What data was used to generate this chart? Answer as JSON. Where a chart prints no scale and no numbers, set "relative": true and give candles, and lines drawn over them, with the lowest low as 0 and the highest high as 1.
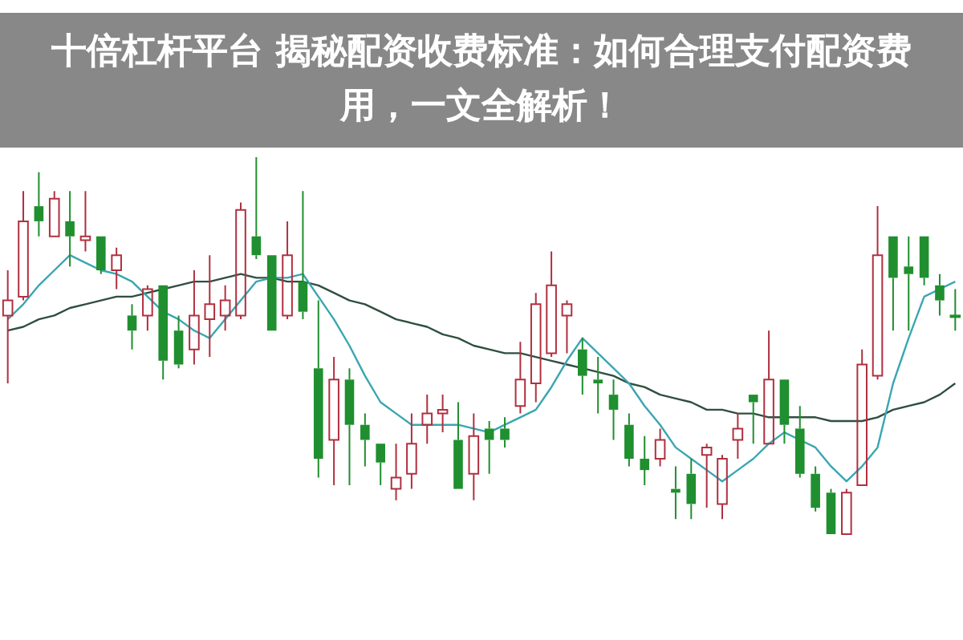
{
  "chart_data": {
    "type": "candlestick",
    "relative": true,
    "title": "十倍杠杆平台 揭秘配资收费标准：如何合理支付配资费用，一文全解析！",
    "categories": [
      null,
      null,
      null,
      null,
      null,
      null,
      null,
      null,
      null,
      null,
      null,
      null,
      null,
      null,
      null,
      null,
      null,
      null,
      null,
      null,
      null,
      null,
      null,
      null,
      null,
      null,
      null,
      null,
      null,
      null,
      null,
      null,
      null,
      null,
      null,
      null,
      null,
      null,
      null,
      null,
      null,
      null,
      null,
      null,
      null,
      null,
      null,
      null,
      null,
      null,
      null,
      null,
      null,
      null,
      null,
      null,
      null,
      null,
      null,
      null,
      null,
      null
    ],
    "ohlc": [
      [
        0.58,
        0.7,
        0.4,
        0.62
      ],
      [
        0.63,
        0.91,
        0.62,
        0.83
      ],
      [
        0.87,
        0.96,
        0.79,
        0.83
      ],
      [
        0.79,
        0.91,
        0.79,
        0.89
      ],
      [
        0.83,
        0.91,
        0.71,
        0.79
      ],
      [
        0.78,
        0.91,
        0.75,
        0.79
      ],
      [
        0.79,
        0.79,
        0.69,
        0.7
      ],
      [
        0.7,
        0.76,
        0.65,
        0.74
      ],
      [
        0.58,
        0.61,
        0.49,
        0.54
      ],
      [
        0.58,
        0.66,
        0.54,
        0.65
      ],
      [
        0.66,
        0.66,
        0.41,
        0.46
      ],
      [
        0.54,
        0.58,
        0.44,
        0.45
      ],
      [
        0.49,
        0.7,
        0.45,
        0.58
      ],
      [
        0.57,
        0.74,
        0.47,
        0.61
      ],
      [
        0.58,
        0.66,
        0.54,
        0.62
      ],
      [
        0.58,
        0.88,
        0.57,
        0.86
      ],
      [
        0.79,
        1.0,
        0.73,
        0.74
      ],
      [
        0.74,
        0.74,
        0.54,
        0.54
      ],
      [
        0.58,
        0.83,
        0.57,
        0.74
      ],
      [
        0.67,
        0.91,
        0.57,
        0.59
      ],
      [
        0.44,
        0.62,
        0.15,
        0.2
      ],
      [
        0.25,
        0.47,
        0.13,
        0.41
      ],
      [
        0.41,
        0.44,
        0.13,
        0.29
      ],
      [
        0.29,
        0.32,
        0.18,
        0.25
      ],
      [
        0.24,
        0.24,
        0.13,
        0.19
      ],
      [
        0.12,
        0.24,
        0.09,
        0.15
      ],
      [
        0.16,
        0.32,
        0.12,
        0.24
      ],
      [
        0.29,
        0.37,
        0.24,
        0.32
      ],
      [
        0.32,
        0.37,
        0.27,
        0.33
      ],
      [
        0.25,
        0.35,
        0.12,
        0.12
      ],
      [
        0.16,
        0.32,
        0.09,
        0.26
      ],
      [
        0.28,
        0.3,
        0.16,
        0.25
      ],
      [
        0.28,
        0.31,
        0.23,
        0.25
      ],
      [
        0.34,
        0.51,
        0.32,
        0.41
      ],
      [
        0.4,
        0.64,
        0.35,
        0.61
      ],
      [
        0.48,
        0.75,
        0.47,
        0.66
      ],
      [
        0.58,
        0.62,
        0.48,
        0.61
      ],
      [
        0.49,
        0.52,
        0.37,
        0.42
      ],
      [
        0.41,
        0.47,
        0.32,
        0.4
      ],
      [
        0.37,
        0.41,
        0.25,
        0.33
      ],
      [
        0.29,
        0.32,
        0.18,
        0.2
      ],
      [
        0.2,
        0.26,
        0.13,
        0.17
      ],
      [
        0.2,
        0.28,
        0.18,
        0.25
      ],
      [
        0.12,
        0.18,
        0.04,
        0.11
      ],
      [
        0.16,
        0.2,
        0.04,
        0.08
      ],
      [
        0.21,
        0.24,
        0.07,
        0.23
      ],
      [
        0.08,
        0.21,
        0.04,
        0.2
      ],
      [
        0.25,
        0.32,
        0.2,
        0.28
      ],
      [
        0.37,
        0.37,
        0.24,
        0.35
      ],
      [
        0.24,
        0.54,
        0.24,
        0.41
      ],
      [
        0.41,
        0.41,
        0.24,
        0.29
      ],
      [
        0.28,
        0.34,
        0.15,
        0.16
      ],
      [
        0.16,
        0.18,
        0.06,
        0.07
      ],
      [
        0.11,
        0.12,
        0,
        0
      ],
      [
        0,
        0.12,
        0,
        0.11
      ],
      [
        0.13,
        0.49,
        0.13,
        0.45
      ],
      [
        0.42,
        0.87,
        0.41,
        0.74
      ],
      [
        0.79,
        0.79,
        0.54,
        0.68
      ],
      [
        0.71,
        0.79,
        0.54,
        0.69
      ],
      [
        0.79,
        0.79,
        0.66,
        0.68
      ],
      [
        0.66,
        0.69,
        0.58,
        0.62
      ],
      [
        0.58,
        0.65,
        0.54,
        0.58
      ]
    ],
    "colors": [
      "#b03040",
      "#b03040",
      "#1f8f2f",
      "#b03040",
      "#1f8f2f",
      "#b03040",
      "#1f8f2f",
      "#b03040",
      "#1f8f2f",
      "#b03040",
      "#1f8f2f",
      "#1f8f2f",
      "#b03040",
      "#b03040",
      "#b03040",
      "#b03040",
      "#1f8f2f",
      "#1f8f2f",
      "#b03040",
      "#1f8f2f",
      "#1f8f2f",
      "#b03040",
      "#1f8f2f",
      "#1f8f2f",
      "#1f8f2f",
      "#b03040",
      "#b03040",
      "#b03040",
      "#b03040",
      "#1f8f2f",
      "#b03040",
      "#1f8f2f",
      "#1f8f2f",
      "#b03040",
      "#b03040",
      "#b03040",
      "#b03040",
      "#1f8f2f",
      "#1f8f2f",
      "#1f8f2f",
      "#1f8f2f",
      "#1f8f2f",
      "#b03040",
      "#1f8f2f",
      "#1f8f2f",
      "#b03040",
      "#b03040",
      "#b03040",
      "#1f8f2f",
      "#b03040",
      "#1f8f2f",
      "#1f8f2f",
      "#1f8f2f",
      "#1f8f2f",
      "#b03040",
      "#b03040",
      "#b03040",
      "#1f8f2f",
      "#1f8f2f",
      "#1f8f2f",
      "#1f8f2f",
      "#1f8f2f"
    ],
    "series": [
      {
        "type": "line",
        "color": "#3aa6b0",
        "values": [
          0.57,
          0.61,
          0.66,
          0.7,
          0.74,
          0.72,
          0.7,
          0.69,
          0.67,
          0.63,
          0.59,
          0.57,
          0.54,
          0.52,
          0.57,
          0.62,
          0.67,
          0.68,
          0.68,
          0.69,
          0.63,
          0.57,
          0.5,
          0.42,
          0.35,
          0.32,
          0.29,
          0.29,
          0.29,
          0.29,
          0.28,
          0.27,
          0.29,
          0.31,
          0.33,
          0.39,
          0.46,
          0.52,
          0.48,
          0.44,
          0.4,
          0.34,
          0.29,
          0.23,
          0.2,
          0.17,
          0.14,
          0.17,
          0.2,
          0.24,
          0.27,
          0.25,
          0.23,
          0.18,
          0.14,
          0.18,
          0.23,
          0.4,
          0.52,
          0.63,
          0.65,
          0.67
        ]
      },
      {
        "type": "line",
        "color": "#2f4f3f",
        "values": [
          0.54,
          0.55,
          0.57,
          0.58,
          0.6,
          0.61,
          0.62,
          0.63,
          0.63,
          0.64,
          0.65,
          0.66,
          0.67,
          0.67,
          0.68,
          0.69,
          0.68,
          0.68,
          0.67,
          0.67,
          0.66,
          0.64,
          0.62,
          0.61,
          0.59,
          0.57,
          0.56,
          0.55,
          0.53,
          0.52,
          0.5,
          0.49,
          0.48,
          0.48,
          0.47,
          0.46,
          0.45,
          0.44,
          0.43,
          0.42,
          0.4,
          0.39,
          0.37,
          0.36,
          0.35,
          0.33,
          0.33,
          0.32,
          0.32,
          0.31,
          0.31,
          0.31,
          0.31,
          0.3,
          0.3,
          0.3,
          0.31,
          0.33,
          0.34,
          0.35,
          0.37,
          0.4
        ]
      }
    ]
  }
}
